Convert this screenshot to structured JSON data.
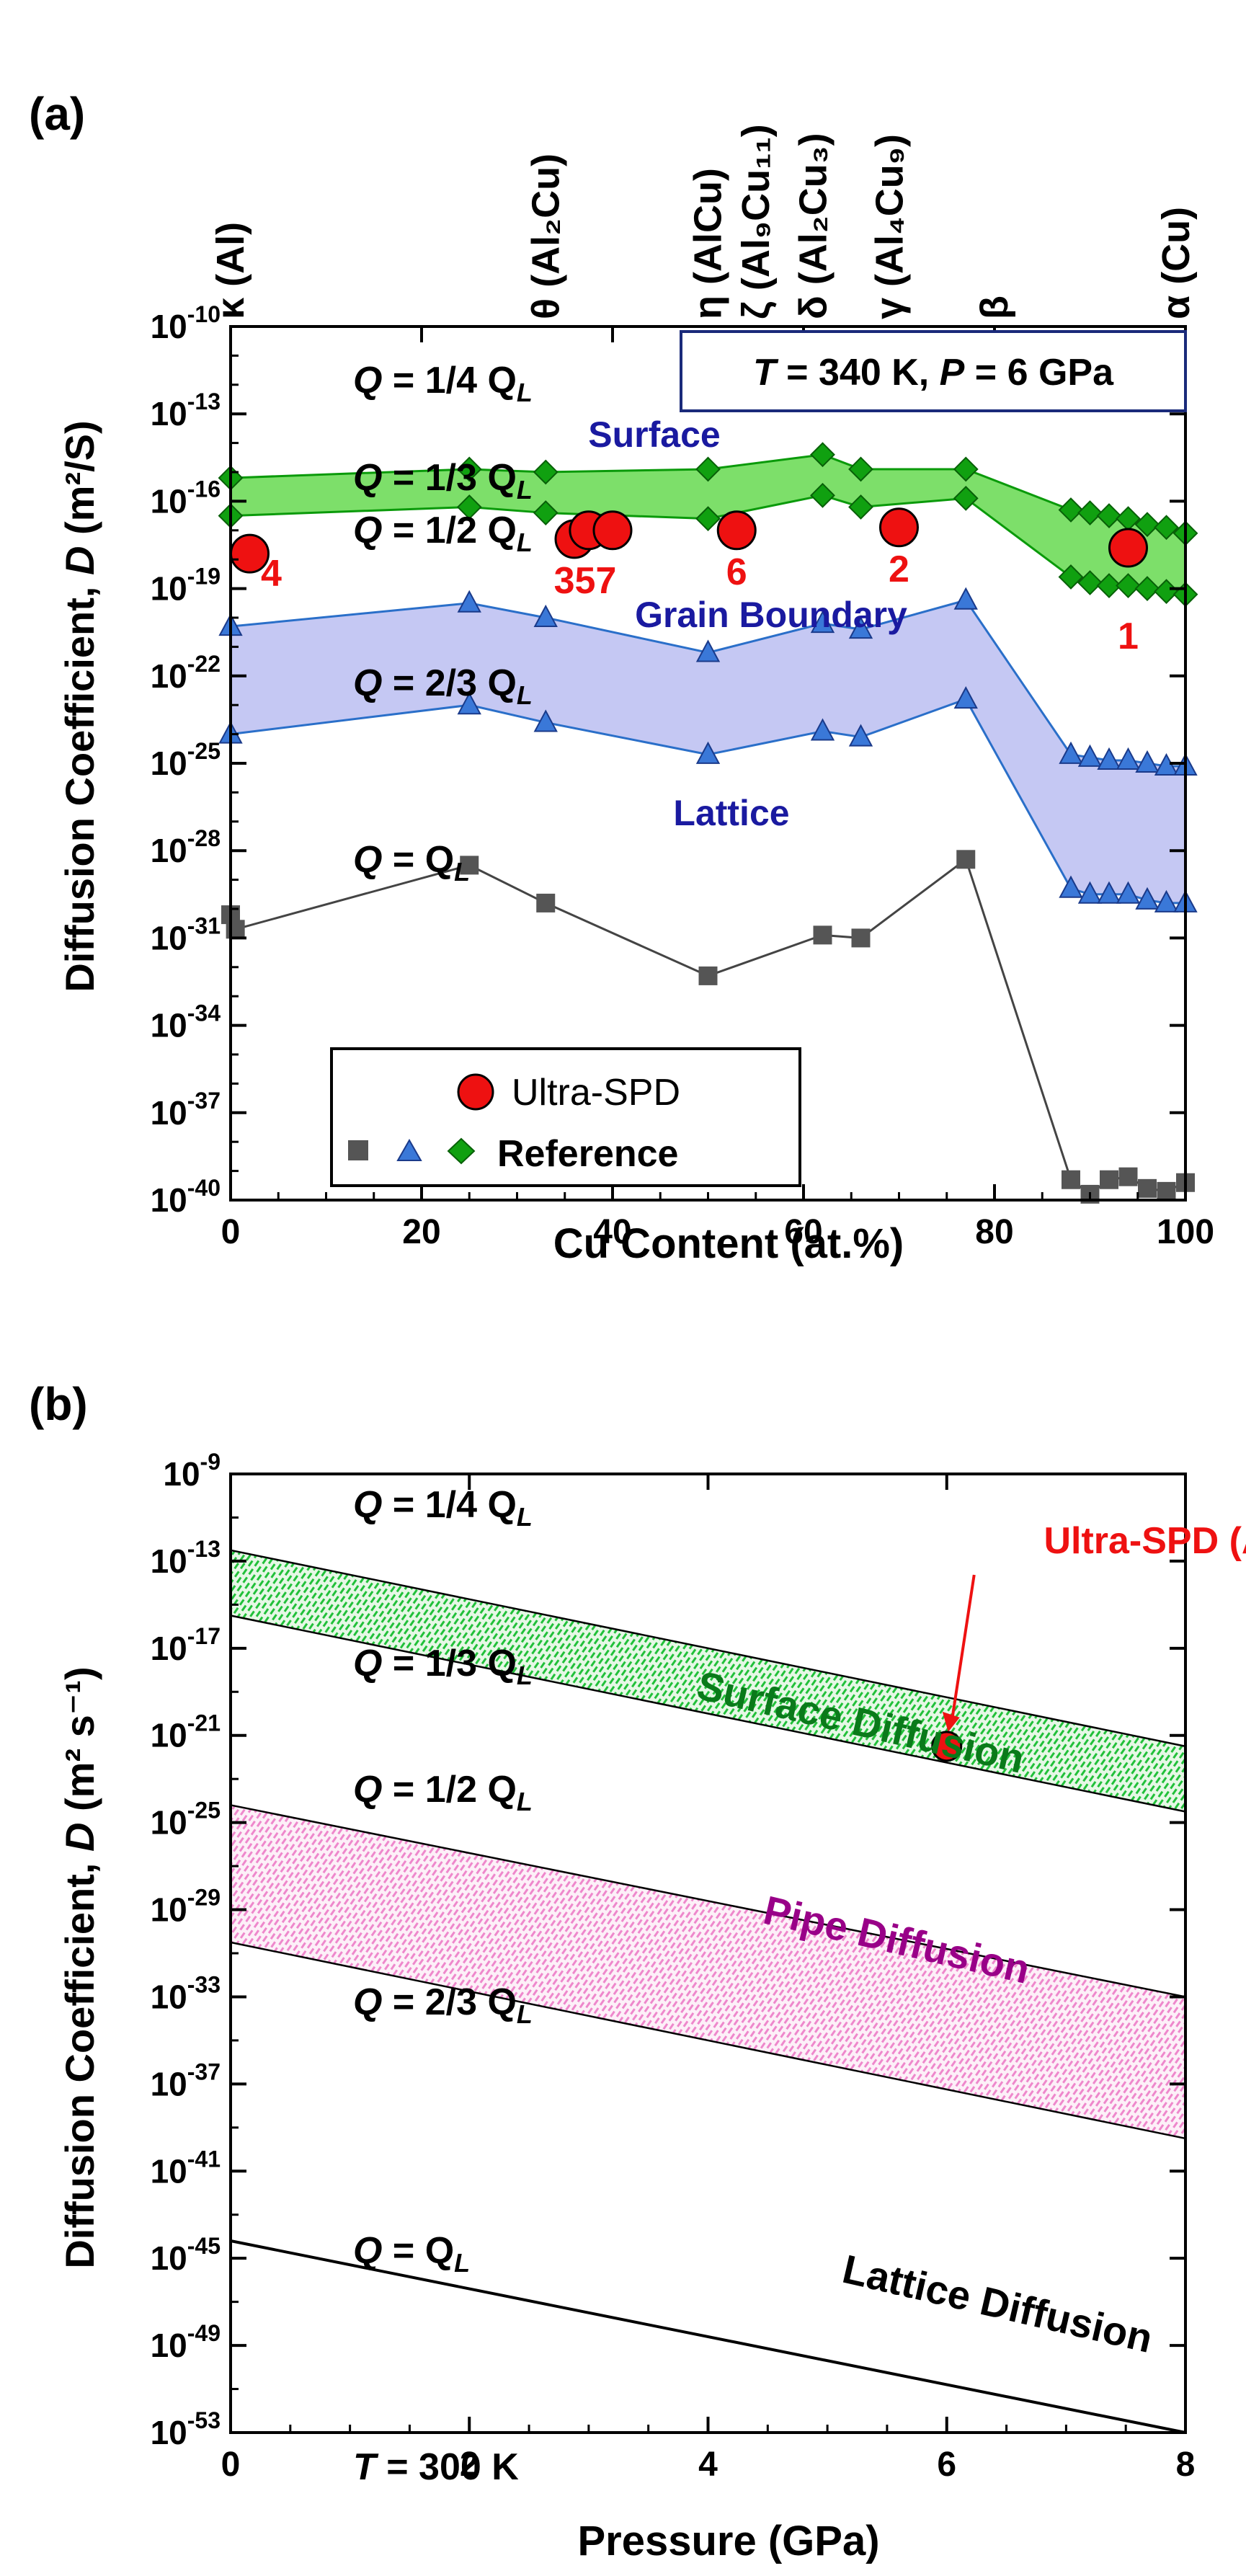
{
  "chart_data": [
    {
      "panel_label": "(a)",
      "type": "line",
      "xlabel": "Cu Content (at.%)",
      "ylabel_prefix": "Diffusion Coefficient, ",
      "ylabel_var": "D",
      "ylabel_unit": "(m²/S)",
      "xlim": [
        0,
        100
      ],
      "xticks": [
        0,
        20,
        40,
        60,
        80,
        100
      ],
      "ylim_exp": [
        -40,
        -10
      ],
      "yticks_exp": [
        -10,
        -13,
        -16,
        -19,
        -22,
        -25,
        -28,
        -31,
        -34,
        -37,
        -40
      ],
      "condition_box": {
        "T_label": "T",
        "T_value": " = 340 K, ",
        "P_label": "P",
        "P_value": " = 6 GPa"
      },
      "phases": [
        {
          "label": "κ (Al)",
          "x": 0
        },
        {
          "label": "θ (Al₂Cu)",
          "x": 33
        },
        {
          "label": "η (AlCu)",
          "x": 50
        },
        {
          "label": "ζ (Al₉Cu₁₁)",
          "x": 55
        },
        {
          "label": "δ (Al₂Cu₃)",
          "x": 61
        },
        {
          "label": "γ (Al₄Cu₉)",
          "x": 69
        },
        {
          "label": "β",
          "x": 80
        },
        {
          "label": "α (Cu)",
          "x": 99
        }
      ],
      "series": [
        {
          "name": "Surface Q = 1/4 Q_L",
          "marker": "diamond",
          "color": "#10a010",
          "x": [
            0,
            25,
            33,
            50,
            62,
            66,
            77,
            88,
            90,
            92,
            94,
            96,
            98,
            100
          ],
          "y_exp": [
            -15.2,
            -14.9,
            -15.0,
            -14.9,
            -14.4,
            -14.9,
            -14.9,
            -16.3,
            -16.4,
            -16.5,
            -16.6,
            -16.8,
            -16.9,
            -17.1
          ]
        },
        {
          "name": "Surface Q = 1/3 Q_L",
          "marker": "diamond",
          "color": "#10a010",
          "x": [
            0,
            25,
            33,
            50,
            62,
            66,
            77,
            88,
            90,
            92,
            94,
            96,
            98,
            100
          ],
          "y_exp": [
            -16.5,
            -16.2,
            -16.4,
            -16.6,
            -15.8,
            -16.2,
            -15.9,
            -18.6,
            -18.8,
            -18.9,
            -18.9,
            -19.0,
            -19.1,
            -19.2
          ]
        },
        {
          "name": "Grain Boundary Q = 1/2 Q_L",
          "marker": "triangle",
          "color": "#3a78d8",
          "x": [
            0,
            25,
            33,
            50,
            62,
            66,
            77,
            88,
            90,
            92,
            94,
            96,
            98,
            100
          ],
          "y_exp": [
            -20.3,
            -19.5,
            -20.0,
            -21.2,
            -20.2,
            -20.4,
            -19.4,
            -24.7,
            -24.8,
            -24.9,
            -24.9,
            -25.0,
            -25.1,
            -25.1
          ]
        },
        {
          "name": "Grain Boundary Q = 2/3 Q_L",
          "marker": "triangle",
          "color": "#3a78d8",
          "x": [
            0,
            25,
            33,
            50,
            62,
            66,
            77,
            88,
            90,
            92,
            94,
            96,
            98,
            100
          ],
          "y_exp": [
            -24.0,
            -23.0,
            -23.6,
            -24.7,
            -23.9,
            -24.1,
            -22.8,
            -29.3,
            -29.5,
            -29.5,
            -29.5,
            -29.7,
            -29.8,
            -29.8
          ]
        },
        {
          "name": "Lattice Q = Q_L",
          "marker": "square",
          "color": "#555555",
          "x": [
            0,
            0.5,
            25,
            33,
            50,
            62,
            66,
            77,
            88,
            90,
            92,
            94,
            96,
            98,
            100
          ],
          "y_exp": [
            -30.2,
            -30.7,
            -28.5,
            -29.8,
            -32.3,
            -30.9,
            -31.0,
            -28.3,
            -39.3,
            -39.8,
            -39.3,
            -39.2,
            -39.6,
            -39.7,
            -39.4
          ]
        }
      ],
      "ultra_spd": {
        "name": "Ultra-SPD",
        "color": "#ee1111",
        "points": [
          {
            "x": 2,
            "y_exp": -17.8,
            "label": "4"
          },
          {
            "x": 36,
            "y_exp": -17.3,
            "label": "357"
          },
          {
            "x": 37.5,
            "y_exp": -17.0,
            "label": ""
          },
          {
            "x": 40,
            "y_exp": -17.0,
            "label": ""
          },
          {
            "x": 53,
            "y_exp": -17.0,
            "label": "6"
          },
          {
            "x": 70,
            "y_exp": -16.9,
            "label": "2"
          },
          {
            "x": 94,
            "y_exp": -17.6,
            "label": "1"
          }
        ]
      },
      "band_labels": {
        "surface": "Surface",
        "grain_boundary": "Grain Boundary",
        "lattice": "Lattice"
      },
      "q_labels": [
        {
          "pre": "Q",
          "text": " = 1/4 Q",
          "sub": "L"
        },
        {
          "pre": "Q",
          "text": " = 1/3 Q",
          "sub": "L"
        },
        {
          "pre": "Q",
          "text": " = 1/2 Q",
          "sub": "L"
        },
        {
          "pre": "Q",
          "text": " = 2/3 Q",
          "sub": "L"
        },
        {
          "pre": "Q",
          "text": " = Q",
          "sub": "L"
        }
      ],
      "legend": {
        "ultra": "Ultra-SPD",
        "reference": "Reference",
        "position": "bottom-left"
      },
      "colors": {
        "surface_fill": "#7ddf6a",
        "gb_fill": "#c5c8f3",
        "label_blue": "#1a1aa0",
        "label_red": "#ee1111"
      }
    },
    {
      "panel_label": "(b)",
      "type": "area",
      "xlabel": "Pressure (GPa)",
      "ylabel_prefix": "Diffusion Coefficient, ",
      "ylabel_var": "D",
      "ylabel_unit": "(m² s⁻¹)",
      "xlim": [
        0,
        8
      ],
      "xticks": [
        0,
        2,
        4,
        6,
        8
      ],
      "ylim_exp": [
        -53,
        -9
      ],
      "yticks_exp": [
        -9,
        -13,
        -17,
        -21,
        -25,
        -29,
        -33,
        -37,
        -41,
        -45,
        -49,
        -53
      ],
      "lines": [
        {
          "name": "Q = 1/4 Q_L",
          "y0_exp": -12.5,
          "y8_exp": -21.5
        },
        {
          "name": "Q = 1/3 Q_L",
          "y0_exp": -15.5,
          "y8_exp": -24.5
        },
        {
          "name": "Q = 1/2 Q_L",
          "y0_exp": -24.2,
          "y8_exp": -33.0
        },
        {
          "name": "Q = 2/3 Q_L",
          "y0_exp": -30.5,
          "y8_exp": -39.5
        },
        {
          "name": "Q = Q_L",
          "y0_exp": -44.2,
          "y8_exp": -53.0
        }
      ],
      "ultra_spd_point": {
        "label": "Ultra-SPD (Al-Zr)",
        "x": 6,
        "y_exp": -21.5
      },
      "band_labels": {
        "surface": "Surface Diffusion",
        "pipe": "Pipe Diffusion",
        "lattice": "Lattice Diffusion"
      },
      "q_labels": [
        {
          "pre": "Q",
          "text": " = 1/4 Q",
          "sub": "L"
        },
        {
          "pre": "Q",
          "text": " = 1/3 Q",
          "sub": "L"
        },
        {
          "pre": "Q",
          "text": " = 1/2 Q",
          "sub": "L"
        },
        {
          "pre": "Q",
          "text": " = 2/3 Q",
          "sub": "L"
        },
        {
          "pre": "Q",
          "text": " = Q",
          "sub": "L"
        }
      ],
      "temperature": {
        "var": "T",
        "value": " = 300 K"
      },
      "colors": {
        "surface_hatch": "#22c03a",
        "pipe_hatch": "#ee88cc",
        "surface_text": "#0a7a1a",
        "pipe_text": "#990088",
        "point": "#ee1111"
      }
    }
  ]
}
